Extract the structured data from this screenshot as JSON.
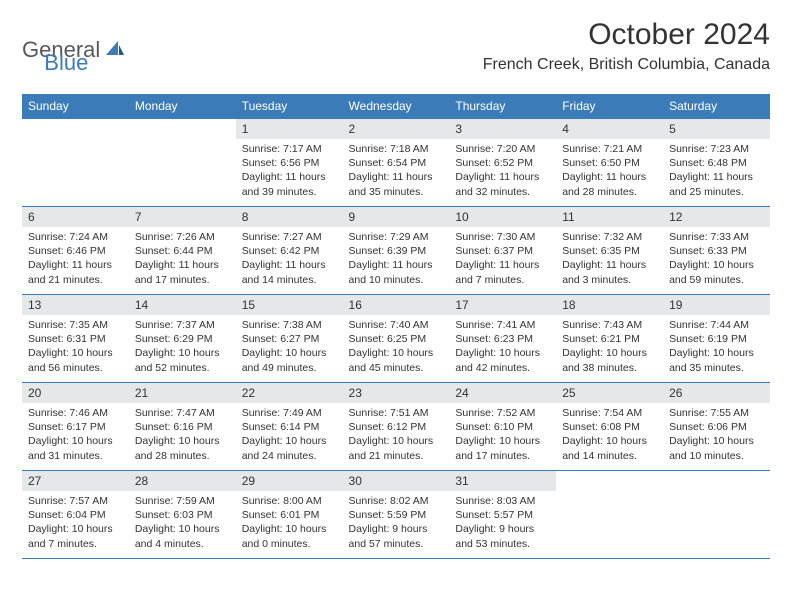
{
  "logo": {
    "text1": "General",
    "text2": "Blue"
  },
  "title": "October 2024",
  "location": "French Creek, British Columbia, Canada",
  "colors": {
    "header_bg": "#3b7cb8",
    "header_text": "#ffffff",
    "daynum_bg": "#e6e7e8",
    "row_border": "#3b7cb8",
    "logo_gray": "#58595b",
    "logo_blue": "#3b7cb8"
  },
  "dow": [
    "Sunday",
    "Monday",
    "Tuesday",
    "Wednesday",
    "Thursday",
    "Friday",
    "Saturday"
  ],
  "weeks": [
    [
      null,
      null,
      {
        "n": "1",
        "sr": "Sunrise: 7:17 AM",
        "ss": "Sunset: 6:56 PM",
        "d1": "Daylight: 11 hours",
        "d2": "and 39 minutes."
      },
      {
        "n": "2",
        "sr": "Sunrise: 7:18 AM",
        "ss": "Sunset: 6:54 PM",
        "d1": "Daylight: 11 hours",
        "d2": "and 35 minutes."
      },
      {
        "n": "3",
        "sr": "Sunrise: 7:20 AM",
        "ss": "Sunset: 6:52 PM",
        "d1": "Daylight: 11 hours",
        "d2": "and 32 minutes."
      },
      {
        "n": "4",
        "sr": "Sunrise: 7:21 AM",
        "ss": "Sunset: 6:50 PM",
        "d1": "Daylight: 11 hours",
        "d2": "and 28 minutes."
      },
      {
        "n": "5",
        "sr": "Sunrise: 7:23 AM",
        "ss": "Sunset: 6:48 PM",
        "d1": "Daylight: 11 hours",
        "d2": "and 25 minutes."
      }
    ],
    [
      {
        "n": "6",
        "sr": "Sunrise: 7:24 AM",
        "ss": "Sunset: 6:46 PM",
        "d1": "Daylight: 11 hours",
        "d2": "and 21 minutes."
      },
      {
        "n": "7",
        "sr": "Sunrise: 7:26 AM",
        "ss": "Sunset: 6:44 PM",
        "d1": "Daylight: 11 hours",
        "d2": "and 17 minutes."
      },
      {
        "n": "8",
        "sr": "Sunrise: 7:27 AM",
        "ss": "Sunset: 6:42 PM",
        "d1": "Daylight: 11 hours",
        "d2": "and 14 minutes."
      },
      {
        "n": "9",
        "sr": "Sunrise: 7:29 AM",
        "ss": "Sunset: 6:39 PM",
        "d1": "Daylight: 11 hours",
        "d2": "and 10 minutes."
      },
      {
        "n": "10",
        "sr": "Sunrise: 7:30 AM",
        "ss": "Sunset: 6:37 PM",
        "d1": "Daylight: 11 hours",
        "d2": "and 7 minutes."
      },
      {
        "n": "11",
        "sr": "Sunrise: 7:32 AM",
        "ss": "Sunset: 6:35 PM",
        "d1": "Daylight: 11 hours",
        "d2": "and 3 minutes."
      },
      {
        "n": "12",
        "sr": "Sunrise: 7:33 AM",
        "ss": "Sunset: 6:33 PM",
        "d1": "Daylight: 10 hours",
        "d2": "and 59 minutes."
      }
    ],
    [
      {
        "n": "13",
        "sr": "Sunrise: 7:35 AM",
        "ss": "Sunset: 6:31 PM",
        "d1": "Daylight: 10 hours",
        "d2": "and 56 minutes."
      },
      {
        "n": "14",
        "sr": "Sunrise: 7:37 AM",
        "ss": "Sunset: 6:29 PM",
        "d1": "Daylight: 10 hours",
        "d2": "and 52 minutes."
      },
      {
        "n": "15",
        "sr": "Sunrise: 7:38 AM",
        "ss": "Sunset: 6:27 PM",
        "d1": "Daylight: 10 hours",
        "d2": "and 49 minutes."
      },
      {
        "n": "16",
        "sr": "Sunrise: 7:40 AM",
        "ss": "Sunset: 6:25 PM",
        "d1": "Daylight: 10 hours",
        "d2": "and 45 minutes."
      },
      {
        "n": "17",
        "sr": "Sunrise: 7:41 AM",
        "ss": "Sunset: 6:23 PM",
        "d1": "Daylight: 10 hours",
        "d2": "and 42 minutes."
      },
      {
        "n": "18",
        "sr": "Sunrise: 7:43 AM",
        "ss": "Sunset: 6:21 PM",
        "d1": "Daylight: 10 hours",
        "d2": "and 38 minutes."
      },
      {
        "n": "19",
        "sr": "Sunrise: 7:44 AM",
        "ss": "Sunset: 6:19 PM",
        "d1": "Daylight: 10 hours",
        "d2": "and 35 minutes."
      }
    ],
    [
      {
        "n": "20",
        "sr": "Sunrise: 7:46 AM",
        "ss": "Sunset: 6:17 PM",
        "d1": "Daylight: 10 hours",
        "d2": "and 31 minutes."
      },
      {
        "n": "21",
        "sr": "Sunrise: 7:47 AM",
        "ss": "Sunset: 6:16 PM",
        "d1": "Daylight: 10 hours",
        "d2": "and 28 minutes."
      },
      {
        "n": "22",
        "sr": "Sunrise: 7:49 AM",
        "ss": "Sunset: 6:14 PM",
        "d1": "Daylight: 10 hours",
        "d2": "and 24 minutes."
      },
      {
        "n": "23",
        "sr": "Sunrise: 7:51 AM",
        "ss": "Sunset: 6:12 PM",
        "d1": "Daylight: 10 hours",
        "d2": "and 21 minutes."
      },
      {
        "n": "24",
        "sr": "Sunrise: 7:52 AM",
        "ss": "Sunset: 6:10 PM",
        "d1": "Daylight: 10 hours",
        "d2": "and 17 minutes."
      },
      {
        "n": "25",
        "sr": "Sunrise: 7:54 AM",
        "ss": "Sunset: 6:08 PM",
        "d1": "Daylight: 10 hours",
        "d2": "and 14 minutes."
      },
      {
        "n": "26",
        "sr": "Sunrise: 7:55 AM",
        "ss": "Sunset: 6:06 PM",
        "d1": "Daylight: 10 hours",
        "d2": "and 10 minutes."
      }
    ],
    [
      {
        "n": "27",
        "sr": "Sunrise: 7:57 AM",
        "ss": "Sunset: 6:04 PM",
        "d1": "Daylight: 10 hours",
        "d2": "and 7 minutes."
      },
      {
        "n": "28",
        "sr": "Sunrise: 7:59 AM",
        "ss": "Sunset: 6:03 PM",
        "d1": "Daylight: 10 hours",
        "d2": "and 4 minutes."
      },
      {
        "n": "29",
        "sr": "Sunrise: 8:00 AM",
        "ss": "Sunset: 6:01 PM",
        "d1": "Daylight: 10 hours",
        "d2": "and 0 minutes."
      },
      {
        "n": "30",
        "sr": "Sunrise: 8:02 AM",
        "ss": "Sunset: 5:59 PM",
        "d1": "Daylight: 9 hours",
        "d2": "and 57 minutes."
      },
      {
        "n": "31",
        "sr": "Sunrise: 8:03 AM",
        "ss": "Sunset: 5:57 PM",
        "d1": "Daylight: 9 hours",
        "d2": "and 53 minutes."
      },
      null,
      null
    ]
  ]
}
